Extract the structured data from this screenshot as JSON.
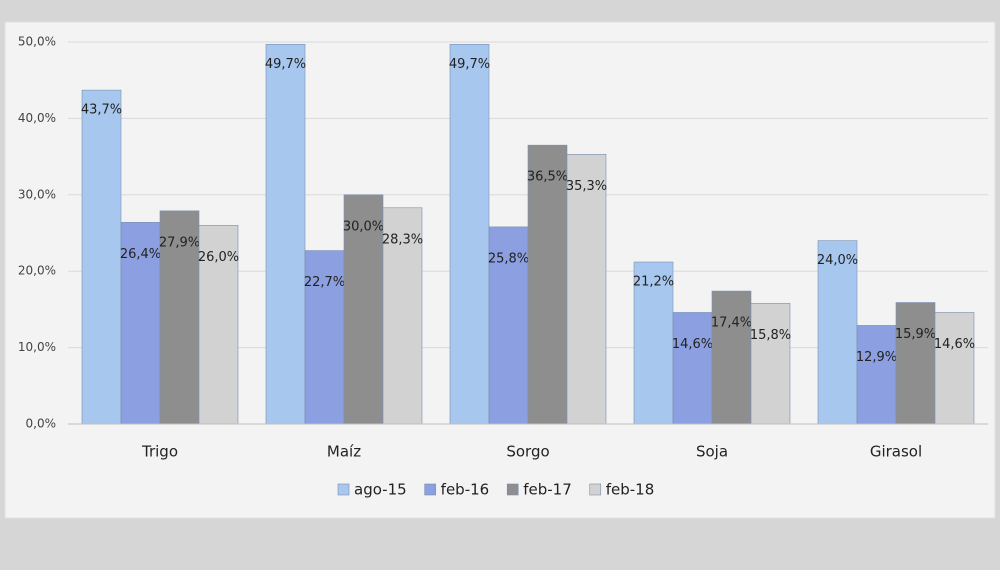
{
  "chart_data": {
    "type": "bar",
    "categories": [
      "Trigo",
      "Maíz",
      "Sorgo",
      "Soja",
      "Girasol"
    ],
    "series": [
      {
        "name": "ago-15",
        "color": "#a7c7ee",
        "values": [
          43.7,
          49.7,
          49.7,
          21.2,
          24.0
        ],
        "value_labels": [
          "43,7%",
          "49,7%",
          "49,7%",
          "21,2%",
          "24,0%"
        ]
      },
      {
        "name": "feb-16",
        "color": "#8c9fe0",
        "values": [
          26.4,
          22.7,
          25.8,
          14.6,
          12.9
        ],
        "value_labels": [
          "26,4%",
          "22,7%",
          "25,8%",
          "14,6%",
          "12,9%"
        ]
      },
      {
        "name": "feb-17",
        "color": "#8e8e8e",
        "values": [
          27.9,
          30.0,
          36.5,
          17.4,
          15.9
        ],
        "value_labels": [
          "27,9%",
          "30,0%",
          "36,5%",
          "17,4%",
          "15,9%"
        ]
      },
      {
        "name": "feb-18",
        "color": "#d2d2d2",
        "values": [
          26.0,
          28.3,
          35.3,
          15.8,
          14.6
        ],
        "value_labels": [
          "26,0%",
          "28,3%",
          "35,3%",
          "15,8%",
          "14,6%"
        ]
      }
    ],
    "ylim": [
      0,
      50
    ],
    "yticks": [
      {
        "value": 0,
        "label": "0,0%"
      },
      {
        "value": 10,
        "label": "10,0%"
      },
      {
        "value": 20,
        "label": "20,0%"
      },
      {
        "value": 30,
        "label": "30,0%"
      },
      {
        "value": 40,
        "label": "40,0%"
      },
      {
        "value": 50,
        "label": "50,0%"
      }
    ],
    "grid": true
  }
}
